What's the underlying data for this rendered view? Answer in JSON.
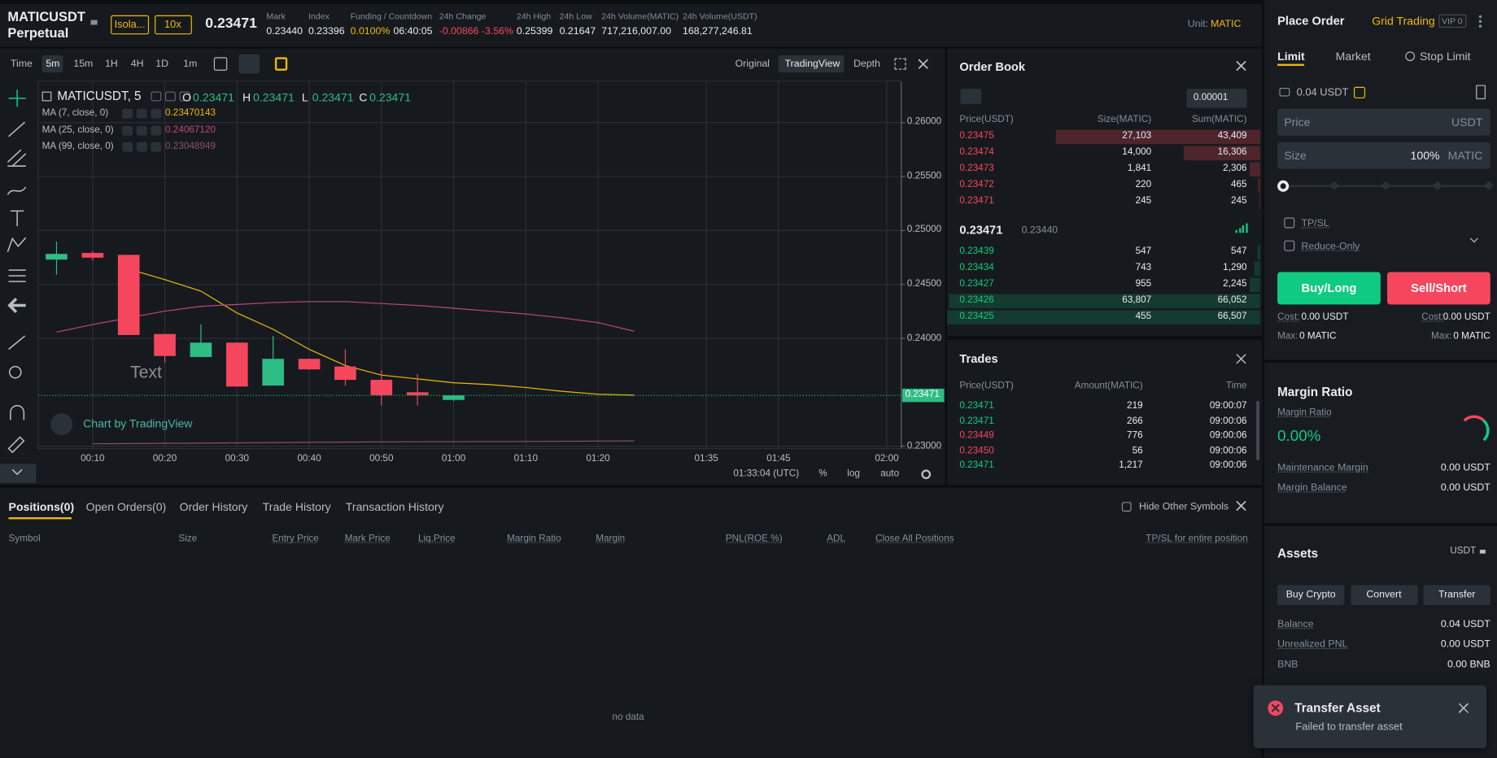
{
  "header": {
    "symbol": "MATICUSDT",
    "contract": "Perpetual",
    "margin_mode": "Isola...",
    "leverage": "10x",
    "last_price": "0.23471",
    "stats": [
      {
        "label": "Mark",
        "value": "0.23440"
      },
      {
        "label": "Index",
        "value": "0.23396"
      },
      {
        "label": "Funding / Countdown",
        "value": "0.0100%",
        "extra": "06:40:05"
      },
      {
        "label": "24h Change",
        "value": "-0.00866 -3.56%"
      },
      {
        "label": "24h High",
        "value": "0.25399"
      },
      {
        "label": "24h Low",
        "value": "0.21647"
      },
      {
        "label": "24h Volume(MATIC)",
        "value": "717,216,007.00"
      },
      {
        "label": "24h Volume(USDT)",
        "value": "168,277,246.81"
      }
    ],
    "unit_label": "Unit:",
    "unit": "MATIC"
  },
  "chart_toolbar": {
    "intervals": [
      "Time",
      "5m",
      "15m",
      "1H",
      "4H",
      "1D",
      "1m"
    ],
    "views": [
      "Original",
      "TradingView",
      "Depth"
    ]
  },
  "chart_data": {
    "type": "candlestick",
    "title": "MATICUSDT, 5",
    "ohlc": [
      {
        "key": "O",
        "value": "0.23471"
      },
      {
        "key": "H",
        "value": "0.23471"
      },
      {
        "key": "L",
        "value": "0.23471"
      },
      {
        "key": "C",
        "value": "0.23471"
      }
    ],
    "x": [
      5,
      10,
      15,
      20,
      25,
      30,
      35,
      40,
      45,
      50,
      55,
      60
    ],
    "open": [
      0.2473,
      0.24792,
      0.24774,
      0.2404,
      0.23827,
      0.2396,
      0.23562,
      0.2381,
      0.23739,
      0.23615,
      0.235,
      0.23429
    ],
    "high": [
      0.24898,
      0.2481,
      0.24774,
      0.2404,
      0.24128,
      0.2396,
      0.24022,
      0.2381,
      0.23898,
      0.23704,
      0.23668,
      0.23476
    ],
    "low": [
      0.24589,
      0.24721,
      0.24031,
      0.23774,
      0.23827,
      0.23553,
      0.23562,
      0.23712,
      0.23562,
      0.23376,
      0.23376,
      0.2342
    ],
    "close": [
      0.24783,
      0.24748,
      0.24031,
      0.23836,
      0.2396,
      0.23553,
      0.2381,
      0.23712,
      0.23615,
      0.23473,
      0.23473,
      0.23471
    ],
    "up_color": "#2ebd85",
    "down_color": "#f6465d",
    "series": [
      {
        "name": "MA (7, close, 0)",
        "legend_value": "0.23470143",
        "color": "#f0b90b",
        "x": [
          15,
          20,
          25,
          30,
          35,
          40,
          45,
          50,
          55,
          60,
          65,
          70,
          75,
          80,
          85
        ],
        "values": [
          0.24642,
          0.24544,
          0.24438,
          0.24235,
          0.24084,
          0.23898,
          0.23748,
          0.23659,
          0.23624,
          0.23588,
          0.23571,
          0.23544,
          0.23509,
          0.23482,
          0.23473
        ]
      },
      {
        "name": "MA (25, close, 0)",
        "legend_value": "0.24067120",
        "color": "#c2467a",
        "x": [
          5,
          10,
          15,
          20,
          25,
          30,
          35,
          40,
          45,
          50,
          55,
          60,
          65,
          70,
          75,
          80,
          85
        ],
        "values": [
          0.24058,
          0.24128,
          0.2419,
          0.24252,
          0.24297,
          0.24314,
          0.24332,
          0.24341,
          0.24341,
          0.24323,
          0.24305,
          0.24279,
          0.24252,
          0.24226,
          0.2419,
          0.24146,
          0.24066
        ]
      },
      {
        "name": "MA (99, close, 0)",
        "legend_value": "0.23048949",
        "color": "#8a4f72",
        "x": [
          10,
          30,
          50,
          70,
          85
        ],
        "values": [
          0.23022,
          0.23031,
          0.2304,
          0.23044,
          0.23049
        ]
      }
    ],
    "xlim": [
      2.46,
      122
    ],
    "xticks": [
      {
        "value": 10,
        "label": "00:10"
      },
      {
        "value": 20,
        "label": "00:20"
      },
      {
        "value": 30,
        "label": "00:30"
      },
      {
        "value": 40,
        "label": "00:40"
      },
      {
        "value": 50,
        "label": "00:50"
      },
      {
        "value": 60,
        "label": "01:00"
      },
      {
        "value": 70,
        "label": "01:10"
      },
      {
        "value": 80,
        "label": "01:20"
      },
      {
        "value": 95,
        "label": "01:35"
      },
      {
        "value": 105,
        "label": "01:45"
      },
      {
        "value": 120,
        "label": "02:00"
      }
    ],
    "ylim": [
      0.22978,
      0.26376
    ],
    "yticks": [
      {
        "value": 0.23,
        "label": "0.23000"
      },
      {
        "value": 0.24,
        "label": "0.24000"
      },
      {
        "value": 0.245,
        "label": "0.24500"
      },
      {
        "value": 0.25,
        "label": "0.25000"
      },
      {
        "value": 0.255,
        "label": "0.25500"
      },
      {
        "value": 0.26,
        "label": "0.26000"
      }
    ],
    "last_price": {
      "value": 0.23471,
      "label": "0.23471"
    },
    "grid": true,
    "annotation": "Text",
    "watermark": "Chart by TradingView",
    "footer": {
      "time": "01:33:04 (UTC)",
      "options": [
        "%",
        "log",
        "auto"
      ]
    }
  },
  "order_book": {
    "title": "Order Book",
    "tick_size": "0.00001",
    "columns": [
      "Price(USDT)",
      "Size(MATIC)",
      "Sum(MATIC)"
    ],
    "asks": [
      [
        "0.23475",
        "27,103",
        "43,409"
      ],
      [
        "0.23474",
        "14,000",
        "16,306"
      ],
      [
        "0.23473",
        "1,841",
        "2,306"
      ],
      [
        "0.23472",
        "220",
        "465"
      ],
      [
        "0.23471",
        "245",
        "245"
      ]
    ],
    "last_price": "0.23471",
    "mark_price": "0.23440",
    "bids": [
      [
        "0.23439",
        "547",
        "547"
      ],
      [
        "0.23434",
        "743",
        "1,290"
      ],
      [
        "0.23427",
        "955",
        "2,245"
      ],
      [
        "0.23426",
        "63,807",
        "66,052"
      ],
      [
        "0.23425",
        "455",
        "66,507"
      ]
    ]
  },
  "trades": {
    "title": "Trades",
    "columns": [
      "Price(USDT)",
      "Amount(MATIC)",
      "Time"
    ],
    "rows": [
      {
        "price": "0.23471",
        "amount": "219",
        "time": "09:00:07",
        "color": "#0ecb81"
      },
      {
        "price": "0.23471",
        "amount": "266",
        "time": "09:00:06",
        "color": "#0ecb81"
      },
      {
        "price": "0.23449",
        "amount": "776",
        "time": "09:00:06",
        "color": "#f6465d"
      },
      {
        "price": "0.23450",
        "amount": "56",
        "time": "09:00:06",
        "color": "#f6465d"
      },
      {
        "price": "0.23471",
        "amount": "1,217",
        "time": "09:00:06",
        "color": "#0ecb81"
      }
    ]
  },
  "positions": {
    "tabs": [
      "Positions(0)",
      "Open Orders(0)",
      "Order History",
      "Trade History",
      "Transaction History"
    ],
    "hide_other_symbols": "Hide Other Symbols",
    "columns": [
      "Symbol",
      "Size",
      "Entry Price",
      "Mark Price",
      "Liq.Price",
      "Margin Ratio",
      "Margin",
      "PNL(ROE %)",
      "ADL",
      "Close All Positions"
    ],
    "tp_sl": "TP/SL for entire position",
    "empty": "no data"
  },
  "order_form": {
    "title": "Place Order",
    "grid_trading": "Grid Trading",
    "vip": "VIP 0",
    "tabs": [
      "Limit",
      "Market",
      "Stop Limit"
    ],
    "available": "0.04 USDT",
    "price_label": "Price",
    "price_unit": "USDT",
    "size_label": "Size",
    "size_percent": "100%",
    "size_unit": "MATIC",
    "tpsl": "TP/SL",
    "reduce_only": "Reduce-Only",
    "buy": "Buy/Long",
    "sell": "Sell/Short",
    "cost_label": "Cost:",
    "buy_cost": "0.00 USDT",
    "sell_cost": "0.00 USDT",
    "max_label": "Max:",
    "buy_max": "0 MATIC",
    "sell_max": "0 MATIC"
  },
  "margin": {
    "title": "Margin Ratio",
    "ratio_label": "Margin Ratio",
    "ratio": "0.00%",
    "rows": [
      [
        "Maintenance Margin",
        "0.00 USDT"
      ],
      [
        "Margin Balance",
        "0.00 USDT"
      ]
    ]
  },
  "assets": {
    "title": "Assets",
    "currency": "USDT",
    "buttons": [
      "Buy Crypto",
      "Convert",
      "Transfer"
    ],
    "rows": [
      [
        "Balance",
        "0.04 USDT"
      ],
      [
        "Unrealized PNL",
        "0.00 USDT"
      ],
      [
        "BNB",
        "0.00 BNB"
      ]
    ]
  },
  "toast": {
    "title": "Transfer Asset",
    "message": "Failed to transfer asset"
  }
}
